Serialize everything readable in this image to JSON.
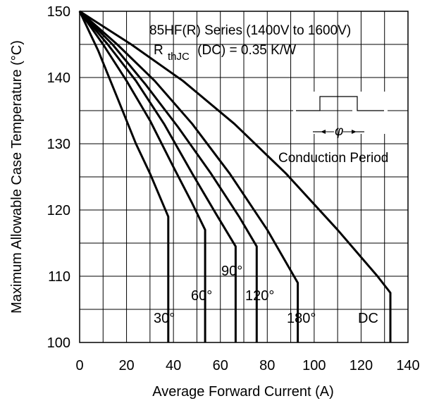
{
  "chart_data": {
    "type": "line",
    "title": "",
    "xlabel": "Average Forward Current (A)",
    "ylabel": "Maximum Allowable Case Temperature (°C)",
    "xlim": [
      0,
      140
    ],
    "ylim": [
      100,
      150
    ],
    "x_ticks": [
      "0",
      "20",
      "40",
      "60",
      "80",
      "100",
      "120",
      "140"
    ],
    "y_ticks": [
      "100",
      "110",
      "120",
      "130",
      "140",
      "150"
    ],
    "grid": true,
    "legend": "none",
    "series": [
      {
        "name": "30°",
        "points": [
          [
            0,
            150
          ],
          [
            8,
            144
          ],
          [
            16,
            137
          ],
          [
            24,
            130
          ],
          [
            30,
            125.5
          ],
          [
            36,
            120.5
          ],
          [
            37.8,
            119
          ],
          [
            37.8,
            100
          ]
        ]
      },
      {
        "name": "60°",
        "points": [
          [
            0,
            150
          ],
          [
            10,
            145
          ],
          [
            20,
            139.5
          ],
          [
            30,
            133.5
          ],
          [
            40,
            126.5
          ],
          [
            48,
            121
          ],
          [
            53.5,
            117
          ],
          [
            53.5,
            100
          ]
        ]
      },
      {
        "name": "90°",
        "points": [
          [
            0,
            150
          ],
          [
            12,
            145
          ],
          [
            24,
            139.5
          ],
          [
            36,
            133
          ],
          [
            48,
            125.5
          ],
          [
            58,
            119.5
          ],
          [
            66.5,
            114.5
          ],
          [
            66.5,
            100
          ]
        ]
      },
      {
        "name": "120°",
        "points": [
          [
            0,
            150
          ],
          [
            14,
            145
          ],
          [
            28,
            139
          ],
          [
            42,
            132.5
          ],
          [
            56,
            125.5
          ],
          [
            68,
            119
          ],
          [
            75.5,
            114.5
          ],
          [
            75.5,
            100
          ]
        ]
      },
      {
        "name": "180°",
        "points": [
          [
            0,
            150
          ],
          [
            16,
            145
          ],
          [
            32,
            139.5
          ],
          [
            48,
            133
          ],
          [
            64,
            125.5
          ],
          [
            80,
            117
          ],
          [
            93,
            109
          ],
          [
            93,
            100
          ]
        ]
      },
      {
        "name": "DC",
        "points": [
          [
            0,
            150
          ],
          [
            22,
            145
          ],
          [
            44,
            139.5
          ],
          [
            66,
            133
          ],
          [
            88,
            125.5
          ],
          [
            110,
            117
          ],
          [
            127,
            110
          ],
          [
            132.5,
            107.5
          ],
          [
            132.5,
            100
          ]
        ]
      }
    ],
    "series_labels": [
      "30°",
      "60°",
      "90°",
      "120°",
      "180°",
      "DC"
    ],
    "annotation": {
      "title": "85HF(R) Series (1400V to 1600V)",
      "r_main": "R",
      "r_sub": "thJC",
      "r_rest": "(DC) = 0.35 K/W",
      "symbol": "φ",
      "conduction": "Conduction Period"
    }
  }
}
